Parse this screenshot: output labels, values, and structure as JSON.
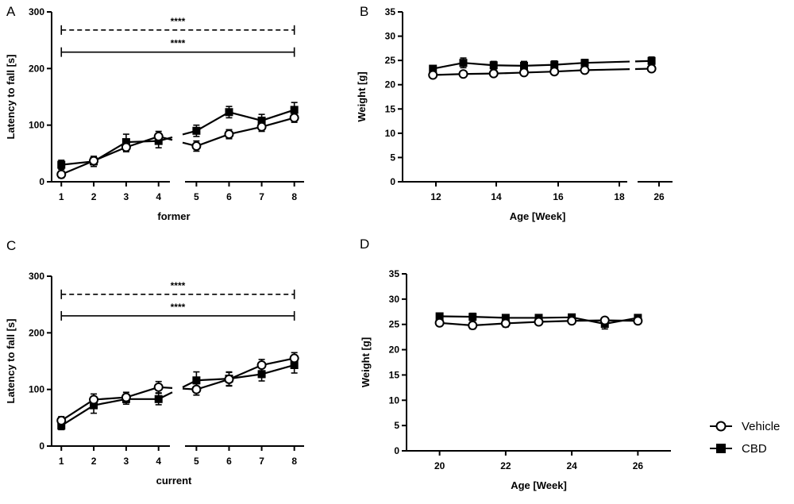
{
  "colors": {
    "ink": "#000000",
    "open_marker": "#ffffff"
  },
  "legend": [
    {
      "label": "Vehicle",
      "marker": "open-circle"
    },
    {
      "label": "CBD",
      "marker": "filled-square"
    }
  ],
  "chart_data": [
    {
      "panel": "A",
      "type": "line",
      "xlabel": "former",
      "ylabel": "Latency to fall [s]",
      "ylim": [
        0,
        300
      ],
      "yticks": [
        0,
        100,
        200,
        300
      ],
      "xlim": [
        0.7,
        8.3
      ],
      "axis_break_x": [
        4.35,
        4.65
      ],
      "x": [
        1,
        2,
        3,
        4,
        5,
        6,
        7,
        8
      ],
      "series": [
        {
          "name": "Vehicle",
          "values": [
            13,
            37,
            61,
            80,
            63,
            84,
            97,
            113
          ],
          "err": [
            6,
            7,
            8,
            9,
            9,
            8,
            8,
            8
          ]
        },
        {
          "name": "CBD",
          "values": [
            30,
            36,
            70,
            72,
            90,
            123,
            108,
            127
          ],
          "err": [
            8,
            9,
            14,
            12,
            10,
            10,
            11,
            13
          ]
        }
      ],
      "significance": [
        {
          "label": "****",
          "style": "dashed",
          "x_from": 1,
          "x_to": 8,
          "y": 268
        },
        {
          "label": "****",
          "style": "solid",
          "x_from": 1,
          "x_to": 8,
          "y": 229
        }
      ]
    },
    {
      "panel": "B",
      "type": "line",
      "xlabel": "Age [Week]",
      "ylabel": "Weight [g]",
      "ylim": [
        0,
        35
      ],
      "yticks": [
        0,
        5,
        10,
        15,
        20,
        25,
        30,
        35
      ],
      "xticks": [
        12,
        14,
        16,
        18,
        26
      ],
      "axis_break_x": [
        18,
        26
      ],
      "x": [
        12,
        13,
        14,
        15,
        16,
        17,
        26
      ],
      "series": [
        {
          "name": "Vehicle",
          "values": [
            22.0,
            22.2,
            22.3,
            22.5,
            22.7,
            23.0,
            23.3
          ],
          "err": [
            0.4,
            0.4,
            0.4,
            0.4,
            0.4,
            0.4,
            0.5
          ]
        },
        {
          "name": "CBD",
          "values": [
            23.3,
            24.5,
            24.0,
            23.9,
            24.1,
            24.5,
            24.9
          ],
          "err": [
            0.6,
            1.0,
            0.8,
            0.9,
            0.8,
            0.7,
            0.8
          ]
        }
      ]
    },
    {
      "panel": "C",
      "type": "line",
      "xlabel": "current",
      "ylabel": "Latency to fall [s]",
      "ylim": [
        0,
        300
      ],
      "yticks": [
        0,
        100,
        200,
        300
      ],
      "xlim": [
        0.7,
        8.3
      ],
      "axis_break_x": [
        4.35,
        4.65
      ],
      "x": [
        1,
        2,
        3,
        4,
        5,
        6,
        7,
        8
      ],
      "series": [
        {
          "name": "Vehicle",
          "values": [
            45,
            82,
            86,
            104,
            100,
            118,
            143,
            155
          ],
          "err": [
            7,
            10,
            9,
            10,
            10,
            12,
            10,
            10
          ]
        },
        {
          "name": "CBD",
          "values": [
            36,
            72,
            83,
            83,
            116,
            119,
            127,
            143
          ],
          "err": [
            7,
            14,
            9,
            10,
            15,
            12,
            12,
            14
          ]
        }
      ],
      "significance": [
        {
          "label": "****",
          "style": "dashed",
          "x_from": 1,
          "x_to": 8,
          "y": 268
        },
        {
          "label": "****",
          "style": "solid",
          "x_from": 1,
          "x_to": 8,
          "y": 230
        }
      ]
    },
    {
      "panel": "D",
      "type": "line",
      "xlabel": "Age [Week]",
      "ylabel": "Weight [g]",
      "ylim": [
        0,
        35
      ],
      "yticks": [
        0,
        5,
        10,
        15,
        20,
        25,
        30,
        35
      ],
      "xlim": [
        19,
        27
      ],
      "xticks": [
        20,
        22,
        24,
        26
      ],
      "x": [
        20,
        21,
        22,
        23,
        24,
        25,
        26
      ],
      "series": [
        {
          "name": "Vehicle",
          "values": [
            25.3,
            24.8,
            25.2,
            25.5,
            25.7,
            25.8,
            25.7
          ],
          "err": [
            0.6,
            0.7,
            0.7,
            0.6,
            0.6,
            0.6,
            0.6
          ]
        },
        {
          "name": "CBD",
          "values": [
            26.6,
            26.5,
            26.3,
            26.3,
            26.4,
            25.1,
            26.3
          ],
          "err": [
            0.6,
            0.7,
            0.6,
            0.6,
            0.6,
            1.0,
            0.6
          ]
        }
      ]
    }
  ]
}
